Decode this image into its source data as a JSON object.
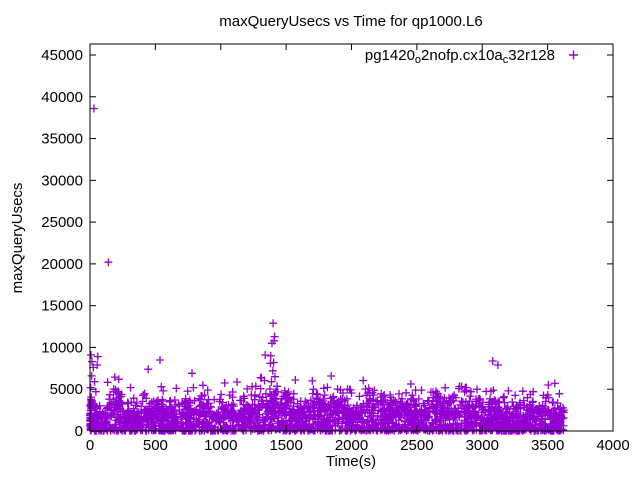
{
  "chart_data": {
    "type": "scatter",
    "title": "maxQueryUsecs vs Time for qp1000.L6",
    "xlabel": "Time(s)",
    "ylabel": "maxQueryUsecs",
    "xlim": [
      0,
      4000
    ],
    "ylim": [
      0,
      46300
    ],
    "xticks": [
      0,
      500,
      1000,
      1500,
      2000,
      2500,
      3000,
      3500,
      4000
    ],
    "yticks": [
      0,
      5000,
      10000,
      15000,
      20000,
      25000,
      30000,
      35000,
      40000,
      45000
    ],
    "grid": false,
    "background": "#ffffff",
    "axis_color": "#000000",
    "legend": {
      "position": "top-right-inside",
      "label_plain": "pg1420o2nofp.cx10ac32r128",
      "label_segments": [
        {
          "text": "pg1420"
        },
        {
          "text": "o",
          "subscript": true
        },
        {
          "text": "2nofp.cx10a"
        },
        {
          "text": "c",
          "subscript": true
        },
        {
          "text": "32r128"
        }
      ],
      "marker": "plus"
    },
    "series": [
      {
        "name": "pg1420_o2nofp.cx10a_c32r128",
        "marker": "plus",
        "color": "#9400D3",
        "notable_points": [
          [
            30,
            38600
          ],
          [
            140,
            20200
          ],
          [
            8,
            9100
          ],
          [
            15,
            8300
          ],
          [
            25,
            7600
          ],
          [
            12,
            6600
          ],
          [
            35,
            5900
          ],
          [
            5,
            5200
          ],
          [
            45,
            4700
          ],
          [
            60,
            8900
          ],
          [
            55,
            7900
          ],
          [
            190,
            6450
          ],
          [
            220,
            6200
          ],
          [
            205,
            4700
          ],
          [
            310,
            5200
          ],
          [
            445,
            7400
          ],
          [
            535,
            8500
          ],
          [
            545,
            5300
          ],
          [
            560,
            4800
          ],
          [
            660,
            5100
          ],
          [
            780,
            6900
          ],
          [
            900,
            4900
          ],
          [
            1030,
            5750
          ],
          [
            1125,
            5870
          ],
          [
            1240,
            5300
          ],
          [
            1340,
            9100
          ],
          [
            1400,
            12900
          ],
          [
            1412,
            11300
          ],
          [
            1408,
            10800
          ],
          [
            1392,
            10500
          ],
          [
            1383,
            9000
          ],
          [
            1405,
            8200
          ],
          [
            1380,
            8100
          ],
          [
            1398,
            7200
          ],
          [
            1415,
            6500
          ],
          [
            1388,
            5900
          ],
          [
            1490,
            4800
          ],
          [
            1570,
            6100
          ],
          [
            1700,
            6000
          ],
          [
            1845,
            6580
          ],
          [
            1935,
            4550
          ],
          [
            2000,
            4550
          ],
          [
            2140,
            4550
          ],
          [
            2295,
            4310
          ],
          [
            2490,
            4900
          ],
          [
            2535,
            4900
          ],
          [
            2650,
            4550
          ],
          [
            2870,
            5200
          ],
          [
            2960,
            5000
          ],
          [
            3080,
            8380
          ],
          [
            3120,
            7900
          ],
          [
            3085,
            4900
          ],
          [
            3200,
            4800
          ],
          [
            3390,
            4700
          ],
          [
            3505,
            5510
          ],
          [
            3555,
            5700
          ],
          [
            3590,
            4450
          ]
        ],
        "dense_band": {
          "description": "dense scatter band of per-interval max query latencies, mostly 0-3000 usecs with a thinning tail to ~5500",
          "count": 2500,
          "t_range": [
            3,
            3625
          ],
          "v_core_max": 2000,
          "v_tail_max": 5450,
          "seed": 1420
        },
        "startup_spike": {
          "description": "dense vertical streak of points at t~0-15s",
          "count": 40,
          "t_range": [
            0,
            15
          ],
          "v_range": [
            0,
            4300
          ]
        }
      }
    ]
  }
}
